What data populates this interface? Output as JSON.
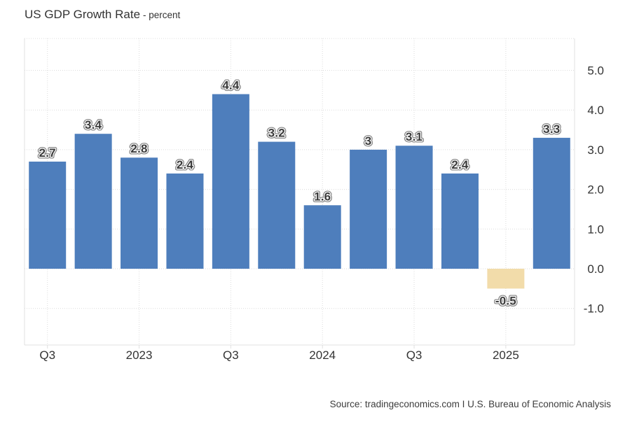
{
  "page": {
    "title": "US GDP Growth Rate",
    "subtitle": "- percent",
    "source": "Source: tradingeconomics.com I U.S. Bureau of Economic Analysis"
  },
  "chart_data": {
    "type": "bar",
    "title": "US GDP Growth Rate",
    "unit_label": "percent",
    "values": [
      2.7,
      3.4,
      2.8,
      2.4,
      4.4,
      3.2,
      1.6,
      3,
      3.1,
      2.4,
      -0.5,
      3.3
    ],
    "bar_labels": [
      "2.7",
      "3.4",
      "2.8",
      "2.4",
      "4.4",
      "3.2",
      "1.6",
      "3",
      "3.1",
      "2.4",
      "-0.5",
      "3.3"
    ],
    "x_ticks": [
      {
        "bar_index": 0,
        "label": "Q3"
      },
      {
        "bar_index": 2,
        "label": "2023"
      },
      {
        "bar_index": 4,
        "label": "Q3"
      },
      {
        "bar_index": 6,
        "label": "2024"
      },
      {
        "bar_index": 8,
        "label": "Q3"
      },
      {
        "bar_index": 10,
        "label": "2025"
      }
    ],
    "y_ticks": [
      {
        "value": 5,
        "label": "5.0"
      },
      {
        "value": 4,
        "label": "4.0"
      },
      {
        "value": 3,
        "label": "3.0"
      },
      {
        "value": 2,
        "label": "2.0"
      },
      {
        "value": 1,
        "label": "1.0"
      },
      {
        "value": 0,
        "label": "0.0"
      },
      {
        "value": -1,
        "label": "-1.0"
      }
    ],
    "ylim": [
      -1.9,
      5.8
    ],
    "grid": true,
    "legend": false,
    "y_axis_side": "right",
    "colors": {
      "positive_bar": "#4e7ebc",
      "negative_bar": "#f2dcaa",
      "grid_line": "#dcdcdc",
      "axis_border": "#e0e0e0",
      "bar_label_fill": "#3b3b3b",
      "bar_label_outline_outer": "#8a8a8a",
      "bar_label_outline_inner": "#ffffff",
      "tick_text": "#333333"
    }
  }
}
